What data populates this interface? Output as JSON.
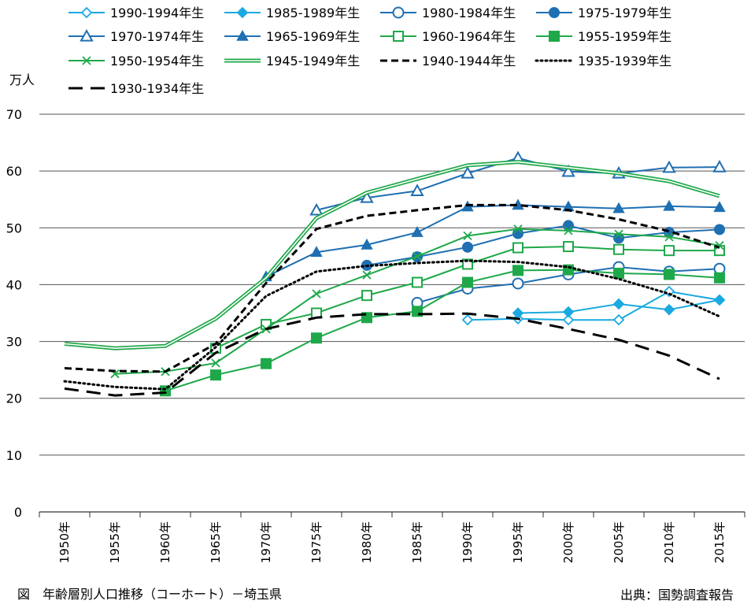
{
  "chart_data": {
    "type": "line",
    "ylabel": "万人",
    "ylim": [
      0,
      70
    ],
    "yticks": [
      0,
      10,
      20,
      30,
      40,
      50,
      60,
      70
    ],
    "categories": [
      "1950年",
      "1955年",
      "1960年",
      "1965年",
      "1970年",
      "1975年",
      "1980年",
      "1985年",
      "1990年",
      "1995年",
      "2000年",
      "2005年",
      "2010年",
      "2015年"
    ],
    "grid": true,
    "legend_position": "top",
    "series": [
      {
        "name": "1990-1994年生",
        "color": "#1aa9e0",
        "marker": "diamond-open",
        "dash": "solid",
        "double": false,
        "values": [
          null,
          null,
          null,
          null,
          null,
          null,
          null,
          null,
          33.8,
          34.0,
          33.8,
          33.8,
          38.8,
          37.3
        ]
      },
      {
        "name": "1985-1989年生",
        "color": "#1aa9e0",
        "marker": "diamond",
        "dash": "solid",
        "double": false,
        "values": [
          null,
          null,
          null,
          null,
          null,
          null,
          null,
          null,
          null,
          35.0,
          35.2,
          36.6,
          35.6,
          37.3
        ]
      },
      {
        "name": "1980-1984年生",
        "color": "#1f6fb2",
        "marker": "circle-open",
        "dash": "solid",
        "double": false,
        "values": [
          null,
          null,
          null,
          null,
          null,
          null,
          null,
          36.8,
          39.3,
          40.2,
          41.8,
          43.1,
          42.3,
          42.8
        ]
      },
      {
        "name": "1975-1979年生",
        "color": "#1f6fb2",
        "marker": "circle",
        "dash": "solid",
        "double": false,
        "values": [
          null,
          null,
          null,
          null,
          null,
          null,
          43.4,
          44.9,
          46.6,
          49.0,
          50.4,
          48.2,
          49.2,
          49.7
        ]
      },
      {
        "name": "1970-1974年生",
        "color": "#1f6fb2",
        "marker": "triangle-open",
        "dash": "solid",
        "double": false,
        "values": [
          null,
          null,
          null,
          null,
          null,
          53.1,
          55.3,
          56.5,
          59.6,
          62.3,
          59.9,
          59.6,
          60.6,
          60.7
        ]
      },
      {
        "name": "1965-1969年生",
        "color": "#1f6fb2",
        "marker": "triangle",
        "dash": "solid",
        "double": false,
        "values": [
          null,
          null,
          null,
          null,
          41.4,
          45.7,
          47.0,
          49.2,
          53.7,
          54.0,
          53.7,
          53.4,
          53.8,
          53.6
        ]
      },
      {
        "name": "1960-1964年生",
        "color": "#1fa84a",
        "marker": "square-open",
        "dash": "solid",
        "double": false,
        "values": [
          null,
          null,
          null,
          28.8,
          33.0,
          35.0,
          38.1,
          40.4,
          43.6,
          46.5,
          46.7,
          46.2,
          46.0,
          46.0
        ]
      },
      {
        "name": "1955-1959年生",
        "color": "#1fa84a",
        "marker": "square",
        "dash": "solid",
        "double": false,
        "values": [
          null,
          null,
          21.3,
          24.1,
          26.1,
          30.6,
          34.2,
          35.3,
          40.4,
          42.5,
          42.6,
          42.0,
          41.8,
          41.2
        ]
      },
      {
        "name": "1950-1954年生",
        "color": "#1fa84a",
        "marker": "cross",
        "dash": "solid",
        "double": false,
        "values": [
          null,
          24.3,
          24.7,
          26.2,
          32.2,
          38.4,
          41.7,
          45.0,
          48.6,
          49.8,
          49.5,
          48.9,
          48.4,
          46.9
        ]
      },
      {
        "name": "1945-1949年生",
        "color": "#1fa84a",
        "marker": "none",
        "dash": "solid",
        "double": true,
        "values": [
          29.6,
          28.8,
          29.2,
          34.0,
          41.2,
          51.7,
          56.2,
          58.6,
          61.0,
          61.6,
          60.6,
          59.6,
          58.2,
          55.6
        ]
      },
      {
        "name": "1940-1944年生",
        "color": "#000000",
        "marker": "none",
        "dash": "shortdash",
        "double": false,
        "values": [
          25.3,
          24.8,
          24.7,
          29.6,
          40.3,
          49.8,
          52.1,
          53.1,
          54.0,
          54.0,
          53.1,
          51.5,
          49.4,
          46.5
        ]
      },
      {
        "name": "1935-1939年生",
        "color": "#000000",
        "marker": "none",
        "dash": "dot",
        "double": false,
        "values": [
          23.0,
          22.0,
          21.6,
          29.0,
          38.0,
          42.3,
          43.3,
          43.8,
          44.2,
          44.0,
          43.1,
          41.0,
          38.4,
          34.4
        ]
      },
      {
        "name": "1930-1934年生",
        "color": "#000000",
        "marker": "none",
        "dash": "longdash",
        "double": false,
        "values": [
          21.7,
          20.5,
          21.0,
          28.0,
          32.2,
          34.2,
          34.8,
          34.8,
          34.9,
          34.0,
          32.2,
          30.3,
          27.5,
          23.4
        ]
      }
    ]
  },
  "caption": "図　年齢層別人口推移（コーホート）－埼玉県",
  "source": "出典：国勢調査報告"
}
